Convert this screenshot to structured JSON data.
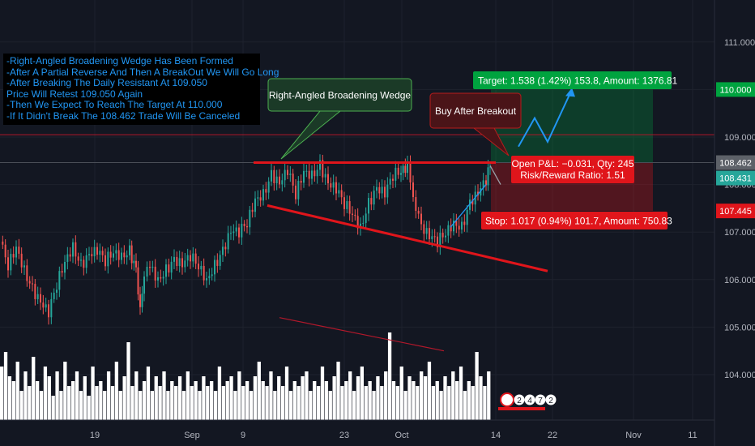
{
  "notes": [
    "-Right-Angled Broadening Wedge Has Been Formed",
    "-After A Partial Reverse And Then A BreakOut We Will Go Long",
    "-After Breaking The Daily Resistant At 109.050",
    "Price Will Retest 109.050 Again",
    "-Then We Expect To Reach The Target At 110.000",
    "-If It Didn't Break The 108.462 Trade Will Be Canceled"
  ],
  "callouts": {
    "wedge": "Right-Angled Broadening Wedge",
    "buy": "Buy After Breakout"
  },
  "position": {
    "target": "Target: 1.538 (1.42%) 153.8, Amount: 1376.81",
    "open_pnl": "Open P&L: −0.031, Qty: 245",
    "risk_reward": "Risk/Reward Ratio: 1.51",
    "stop": "Stop: 1.017 (0.94%) 101.7, Amount: 750.83",
    "entry_price": 108.462,
    "target_price": 110.0,
    "stop_price": 107.445
  },
  "chart_data": {
    "type": "candlestick",
    "y_axis": {
      "ticks": [
        "111.000",
        "110.000",
        "109.000",
        "108.000",
        "107.000",
        "106.000",
        "105.000",
        "104.000"
      ],
      "range": [
        103.3,
        111.7
      ]
    },
    "x_axis": {
      "ticks": [
        "19",
        "Sep",
        "9",
        "23",
        "Oct",
        "14",
        "22",
        "Nov",
        "11"
      ]
    },
    "price_labels": [
      {
        "value": "110.000",
        "color": "#00a33f"
      },
      {
        "value": "108.462",
        "color": "#5d6168"
      },
      {
        "value": "108.431",
        "color": "#26a69a"
      },
      {
        "value": "107.445",
        "color": "#e0151b"
      }
    ],
    "levels": {
      "resistance_daily": 109.05,
      "wedge_top": 108.462,
      "target": 110.0,
      "stop": 107.445
    },
    "price_path": [
      [
        0,
        106.8
      ],
      [
        10,
        106.3
      ],
      [
        20,
        106.7
      ],
      [
        30,
        106.2
      ],
      [
        40,
        105.8
      ],
      [
        50,
        105.5
      ],
      [
        60,
        105.3
      ],
      [
        70,
        105.9
      ],
      [
        80,
        106.4
      ],
      [
        90,
        106.7
      ],
      [
        100,
        106.3
      ],
      [
        110,
        106.5
      ],
      [
        120,
        106.6
      ],
      [
        130,
        106.4
      ],
      [
        140,
        106.6
      ],
      [
        150,
        106.5
      ],
      [
        160,
        106.6
      ],
      [
        168,
        106.2
      ],
      [
        173,
        105.3
      ],
      [
        178,
        106.0
      ],
      [
        185,
        106.3
      ],
      [
        195,
        106.0
      ],
      [
        205,
        106.2
      ],
      [
        215,
        106.4
      ],
      [
        225,
        106.3
      ],
      [
        235,
        106.5
      ],
      [
        245,
        106.3
      ],
      [
        255,
        106.0
      ],
      [
        265,
        106.3
      ],
      [
        275,
        106.6
      ],
      [
        285,
        107.0
      ],
      [
        295,
        107.0
      ],
      [
        305,
        107.2
      ],
      [
        315,
        107.7
      ],
      [
        325,
        107.8
      ],
      [
        335,
        108.2
      ],
      [
        345,
        108.0
      ],
      [
        355,
        108.3
      ],
      [
        365,
        107.8
      ],
      [
        375,
        108.3
      ],
      [
        385,
        108.2
      ],
      [
        395,
        108.4
      ],
      [
        405,
        108.0
      ],
      [
        415,
        107.9
      ],
      [
        425,
        107.6
      ],
      [
        435,
        107.4
      ],
      [
        445,
        107.1
      ],
      [
        455,
        107.6
      ],
      [
        465,
        107.9
      ],
      [
        475,
        107.8
      ],
      [
        485,
        108.2
      ],
      [
        495,
        108.3
      ],
      [
        503,
        108.4
      ],
      [
        510,
        107.8
      ],
      [
        520,
        107.1
      ],
      [
        530,
        106.9
      ],
      [
        540,
        106.8
      ],
      [
        550,
        107.0
      ],
      [
        560,
        107.2
      ],
      [
        570,
        107.1
      ],
      [
        580,
        107.6
      ],
      [
        590,
        107.8
      ],
      [
        600,
        108.1
      ],
      [
        605,
        108.4
      ]
    ],
    "volume": [
      0.55,
      0.7,
      0.45,
      0.4,
      0.6,
      0.3,
      0.5,
      0.35,
      0.65,
      0.4,
      0.3,
      0.55,
      0.45,
      0.25,
      0.5,
      0.3,
      0.6,
      0.35,
      0.4,
      0.5,
      0.3,
      0.45,
      0.25,
      0.55,
      0.35,
      0.4,
      0.3,
      0.5,
      0.35,
      0.6,
      0.3,
      0.45,
      0.8,
      0.35,
      0.5,
      0.3,
      0.4,
      0.55,
      0.3,
      0.45,
      0.35,
      0.5,
      0.3,
      0.4,
      0.35,
      0.45,
      0.3,
      0.5,
      0.35,
      0.4,
      0.3,
      0.45,
      0.35,
      0.4,
      0.3,
      0.55,
      0.35,
      0.4,
      0.45,
      0.3,
      0.5,
      0.35,
      0.4,
      0.3,
      0.45,
      0.6,
      0.4,
      0.35,
      0.5,
      0.3,
      0.45,
      0.35,
      0.55,
      0.3,
      0.4,
      0.35,
      0.45,
      0.5,
      0.3,
      0.4,
      0.35,
      0.55,
      0.4,
      0.3,
      0.45,
      0.6,
      0.35,
      0.4,
      0.5,
      0.3,
      0.45,
      0.55,
      0.35,
      0.4,
      0.3,
      0.45,
      0.35,
      0.5,
      0.9,
      0.4,
      0.35,
      0.55,
      0.3,
      0.45,
      0.4,
      0.35,
      0.5,
      0.45,
      0.6,
      0.35,
      0.4,
      0.3,
      0.45,
      0.35,
      0.5,
      0.4,
      0.55,
      0.3,
      0.4,
      0.35,
      0.7,
      0.45,
      0.35,
      0.5
    ],
    "target_arrow_path": [
      [
        640,
        108.8
      ],
      [
        660,
        109.4
      ],
      [
        676,
        108.9
      ],
      [
        706,
        110.0
      ]
    ],
    "retest_arrow_path": [
      [
        605,
        108.4
      ],
      [
        618,
        108.0
      ]
    ]
  },
  "colors": {
    "background": "#131722",
    "grid": "#1e222d",
    "up": "#26a69a",
    "down": "#ef5350",
    "line_red": "#e0151b",
    "target_green": "#00a33f",
    "stop_red": "#e0151b",
    "arrow_blue": "#2196f3"
  },
  "icons": {
    "logo": "tradingview-logo-icon"
  },
  "watermark_badges": [
    "2",
    "4",
    "7",
    "2"
  ]
}
